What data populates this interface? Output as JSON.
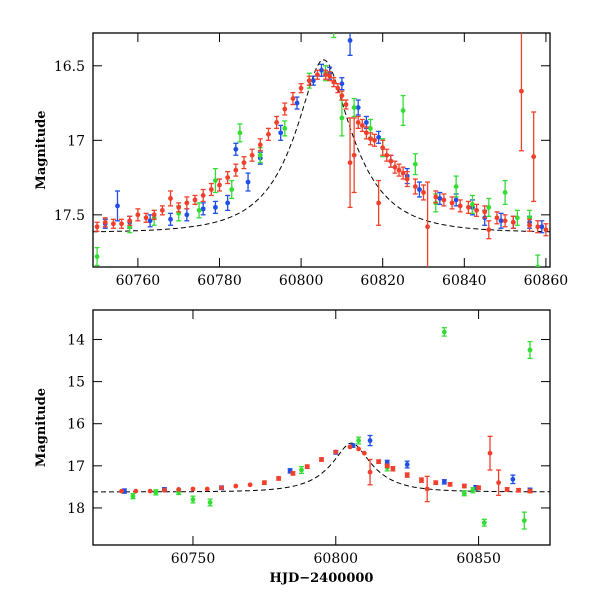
{
  "colors": {
    "blue": "#1f4fe6",
    "green": "#33dd33",
    "red": "#f0402c",
    "frame": "#000000"
  },
  "chart_data": [
    {
      "type": "scatter",
      "xlabel": "",
      "ylabel": "Magnitude",
      "xlim": [
        60749,
        60861
      ],
      "ylim": [
        17.85,
        16.28
      ],
      "y_inverted": true,
      "xticks": [
        60760,
        60780,
        60800,
        60820,
        60840,
        60860
      ],
      "yticks": [
        16.5,
        17,
        17.5
      ],
      "has_model_curve": true,
      "grid": false,
      "series": [
        {
          "color": "blue",
          "points": [
            [
              60752,
              17.56,
              0.03
            ],
            [
              60755,
              17.44,
              0.1
            ],
            [
              60758,
              17.55,
              0.04
            ],
            [
              60763,
              17.54,
              0.04
            ],
            [
              60768,
              17.53,
              0.04
            ],
            [
              60772,
              17.5,
              0.04
            ],
            [
              60776,
              17.46,
              0.04
            ],
            [
              60779,
              17.45,
              0.04
            ],
            [
              60782,
              17.42,
              0.05
            ],
            [
              60784,
              17.06,
              0.04
            ],
            [
              60787,
              17.28,
              0.06
            ],
            [
              60790,
              17.12,
              0.04
            ],
            [
              60795,
              16.95,
              0.05
            ],
            [
              60799,
              16.75,
              0.04
            ],
            [
              60803,
              16.6,
              0.03
            ],
            [
              60805,
              16.53,
              0.04
            ],
            [
              60807,
              16.55,
              0.04
            ],
            [
              60810,
              16.62,
              0.04
            ],
            [
              60812,
              16.33,
              0.1
            ],
            [
              60814,
              16.78,
              0.05
            ],
            [
              60816,
              16.88,
              0.04
            ],
            [
              60819,
              16.98,
              0.04
            ],
            [
              60822,
              17.14,
              0.04
            ],
            [
              60826,
              17.24,
              0.05
            ],
            [
              60829,
              17.33,
              0.05
            ],
            [
              60834,
              17.39,
              0.04
            ],
            [
              60838,
              17.4,
              0.04
            ],
            [
              60842,
              17.45,
              0.05
            ],
            [
              60845,
              17.52,
              0.05
            ],
            [
              60849,
              17.54,
              0.05
            ],
            [
              60852,
              17.55,
              0.04
            ],
            [
              60856,
              17.55,
              0.04
            ],
            [
              60859,
              17.58,
              0.04
            ]
          ]
        },
        {
          "color": "green",
          "points": [
            [
              60750,
              17.78,
              0.06
            ],
            [
              60758,
              17.58,
              0.04
            ],
            [
              60764,
              17.52,
              0.05
            ],
            [
              60770,
              17.49,
              0.05
            ],
            [
              60775,
              17.47,
              0.05
            ],
            [
              60779,
              17.27,
              0.08
            ],
            [
              60783,
              17.33,
              0.06
            ],
            [
              60785,
              16.95,
              0.06
            ],
            [
              60790,
              17.1,
              0.05
            ],
            [
              60796,
              16.92,
              0.05
            ],
            [
              60802,
              16.6,
              0.05
            ],
            [
              60806,
              16.55,
              0.05
            ],
            [
              60808,
              16.23,
              0.08
            ],
            [
              60810,
              16.85,
              0.12
            ],
            [
              60813,
              16.78,
              0.06
            ],
            [
              60817,
              16.92,
              0.06
            ],
            [
              60820,
              17.05,
              0.06
            ],
            [
              60825,
              16.8,
              0.1
            ],
            [
              60828,
              17.16,
              0.07
            ],
            [
              60833,
              17.42,
              0.06
            ],
            [
              60838,
              17.31,
              0.07
            ],
            [
              60842,
              17.43,
              0.06
            ],
            [
              60846,
              17.45,
              0.06
            ],
            [
              60850,
              17.35,
              0.08
            ],
            [
              60853,
              17.52,
              0.05
            ],
            [
              60856,
              17.52,
              0.05
            ],
            [
              60858,
              17.85,
              0.08
            ]
          ]
        },
        {
          "color": "red",
          "points": [
            [
              60750,
              17.58,
              0.03
            ],
            [
              60752,
              17.55,
              0.03
            ],
            [
              60754,
              17.56,
              0.03
            ],
            [
              60756,
              17.56,
              0.03
            ],
            [
              60758,
              17.54,
              0.03
            ],
            [
              60760,
              17.5,
              0.04
            ],
            [
              60762,
              17.52,
              0.03
            ],
            [
              60764,
              17.5,
              0.03
            ],
            [
              60766,
              17.47,
              0.03
            ],
            [
              60768,
              17.39,
              0.05
            ],
            [
              60770,
              17.45,
              0.03
            ],
            [
              60772,
              17.42,
              0.04
            ],
            [
              60774,
              17.4,
              0.03
            ],
            [
              60776,
              17.37,
              0.04
            ],
            [
              60778,
              17.33,
              0.04
            ],
            [
              60780,
              17.3,
              0.04
            ],
            [
              60782,
              17.25,
              0.04
            ],
            [
              60784,
              17.2,
              0.04
            ],
            [
              60786,
              17.15,
              0.04
            ],
            [
              60788,
              17.1,
              0.04
            ],
            [
              60790,
              17.03,
              0.04
            ],
            [
              60792,
              16.96,
              0.04
            ],
            [
              60794,
              16.88,
              0.04
            ],
            [
              60796,
              16.79,
              0.04
            ],
            [
              60798,
              16.72,
              0.04
            ],
            [
              60800,
              16.65,
              0.03
            ],
            [
              60802,
              16.6,
              0.03
            ],
            [
              60804,
              16.56,
              0.03
            ],
            [
              60806,
              16.56,
              0.03
            ],
            [
              60807,
              16.57,
              0.03
            ],
            [
              60808,
              16.61,
              0.03
            ],
            [
              60809,
              16.65,
              0.03
            ],
            [
              60810,
              16.7,
              0.03
            ],
            [
              60811,
              16.76,
              0.03
            ],
            [
              60812,
              17.15,
              0.3
            ],
            [
              60813,
              17.1,
              0.25
            ],
            [
              60814,
              16.88,
              0.04
            ],
            [
              60815,
              16.9,
              0.04
            ],
            [
              60816,
              16.95,
              0.04
            ],
            [
              60817,
              16.99,
              0.04
            ],
            [
              60818,
              17.0,
              0.04
            ],
            [
              60819,
              17.42,
              0.15
            ],
            [
              60820,
              17.05,
              0.05
            ],
            [
              60821,
              17.1,
              0.04
            ],
            [
              60822,
              17.14,
              0.04
            ],
            [
              60823,
              17.18,
              0.04
            ],
            [
              60824,
              17.2,
              0.04
            ],
            [
              60825,
              17.22,
              0.04
            ],
            [
              60826,
              17.26,
              0.05
            ],
            [
              60828,
              17.31,
              0.05
            ],
            [
              60830,
              17.35,
              0.05
            ],
            [
              60831,
              17.58,
              0.3
            ],
            [
              60833,
              17.38,
              0.04
            ],
            [
              60835,
              17.4,
              0.04
            ],
            [
              60837,
              17.42,
              0.04
            ],
            [
              60839,
              17.44,
              0.04
            ],
            [
              60841,
              17.45,
              0.04
            ],
            [
              60843,
              17.47,
              0.04
            ],
            [
              60845,
              17.48,
              0.04
            ],
            [
              60846,
              17.6,
              0.06
            ],
            [
              60848,
              17.52,
              0.04
            ],
            [
              60850,
              17.54,
              0.04
            ],
            [
              60852,
              17.55,
              0.04
            ],
            [
              60854,
              16.67,
              0.4
            ],
            [
              60856,
              17.57,
              0.04
            ],
            [
              60857,
              17.11,
              0.3
            ],
            [
              60858,
              17.58,
              0.04
            ],
            [
              60860,
              17.6,
              0.04
            ]
          ]
        }
      ]
    },
    {
      "type": "scatter",
      "xlabel": "HJD−2400000",
      "ylabel": "Magnitude",
      "xlim": [
        60715,
        60875
      ],
      "ylim": [
        18.88,
        13.3
      ],
      "y_inverted": true,
      "xticks": [
        60750,
        60800,
        60850
      ],
      "yticks": [
        14,
        15,
        16,
        17,
        18
      ],
      "has_model_curve": true,
      "grid": false,
      "series": [
        {
          "color": "blue",
          "points": [
            [
              60726,
              17.6,
              0.05
            ],
            [
              60740,
              17.56,
              0.04
            ],
            [
              60760,
              17.52,
              0.04
            ],
            [
              60784,
              17.12,
              0.05
            ],
            [
              60800,
              16.68,
              0.04
            ],
            [
              60806,
              16.52,
              0.04
            ],
            [
              60812,
              16.4,
              0.12
            ],
            [
              60818,
              16.92,
              0.05
            ],
            [
              60825,
              16.97,
              0.08
            ],
            [
              60838,
              17.38,
              0.05
            ],
            [
              60849,
              17.52,
              0.05
            ],
            [
              60862,
              17.32,
              0.1
            ],
            [
              60868,
              17.58,
              0.05
            ]
          ]
        },
        {
          "color": "green",
          "points": [
            [
              60729,
              17.72,
              0.06
            ],
            [
              60737,
              17.63,
              0.06
            ],
            [
              60745,
              17.62,
              0.06
            ],
            [
              60750,
              17.8,
              0.08
            ],
            [
              60756,
              17.87,
              0.08
            ],
            [
              60788,
              17.1,
              0.08
            ],
            [
              60808,
              16.4,
              0.08
            ],
            [
              60818,
              17.04,
              0.08
            ],
            [
              60838,
              13.82,
              0.1
            ],
            [
              60845,
              17.65,
              0.06
            ],
            [
              60848,
              17.58,
              0.06
            ],
            [
              60852,
              18.35,
              0.08
            ],
            [
              60866,
              18.3,
              0.2
            ],
            [
              60868,
              14.25,
              0.2
            ]
          ]
        },
        {
          "color": "red",
          "points": [
            [
              60725,
              17.6,
              0.03
            ],
            [
              60730,
              17.6,
              0.03
            ],
            [
              60735,
              17.6,
              0.03
            ],
            [
              60740,
              17.58,
              0.03
            ],
            [
              60745,
              17.56,
              0.03
            ],
            [
              60750,
              17.55,
              0.03
            ],
            [
              60755,
              17.55,
              0.03
            ],
            [
              60760,
              17.52,
              0.03
            ],
            [
              60765,
              17.48,
              0.03
            ],
            [
              60770,
              17.45,
              0.03
            ],
            [
              60775,
              17.4,
              0.04
            ],
            [
              60780,
              17.3,
              0.04
            ],
            [
              60785,
              17.18,
              0.04
            ],
            [
              60790,
              17.02,
              0.04
            ],
            [
              60795,
              16.85,
              0.04
            ],
            [
              60800,
              16.67,
              0.03
            ],
            [
              60805,
              16.55,
              0.03
            ],
            [
              60808,
              16.6,
              0.03
            ],
            [
              60810,
              16.7,
              0.03
            ],
            [
              60812,
              17.15,
              0.3
            ],
            [
              60815,
              16.9,
              0.04
            ],
            [
              60818,
              17.0,
              0.04
            ],
            [
              60820,
              17.07,
              0.05
            ],
            [
              60825,
              17.22,
              0.05
            ],
            [
              60830,
              17.34,
              0.05
            ],
            [
              60832,
              17.55,
              0.3
            ],
            [
              60835,
              17.4,
              0.04
            ],
            [
              60840,
              17.44,
              0.04
            ],
            [
              60845,
              17.48,
              0.04
            ],
            [
              60850,
              17.52,
              0.04
            ],
            [
              60854,
              16.7,
              0.4
            ],
            [
              60857,
              17.4,
              0.3
            ],
            [
              60860,
              17.56,
              0.04
            ],
            [
              60864,
              17.58,
              0.04
            ],
            [
              60868,
              17.6,
              0.04
            ]
          ]
        }
      ]
    }
  ]
}
